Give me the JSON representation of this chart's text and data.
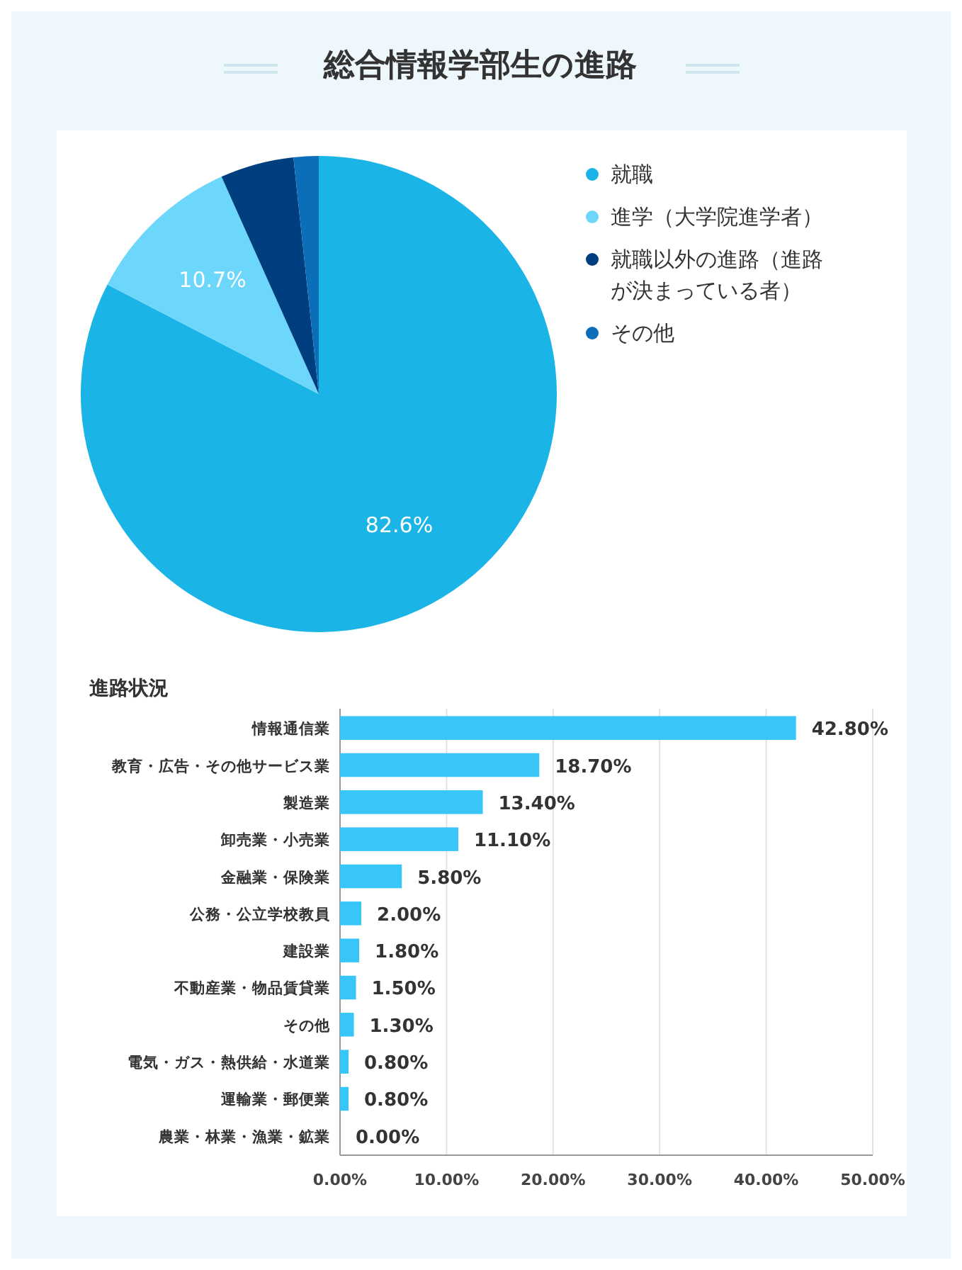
{
  "chart_data": [
    {
      "type": "pie",
      "title": "総合情報学部生の進路",
      "categories": [
        "就職",
        "進学（大学院進学者）",
        "就職以外の進路（進路が決まっている者）",
        "その他"
      ],
      "values": [
        82.6,
        10.7,
        5.0,
        1.7
      ],
      "colors": [
        "#1ab4e6",
        "#6dd6fb",
        "#003f7f",
        "#0a6fb8"
      ],
      "value_labels": [
        "82.6%",
        "10.7%",
        null,
        null
      ],
      "legend": "right"
    },
    {
      "type": "bar",
      "orientation": "horizontal",
      "subtitle": "進路状況",
      "categories": [
        "情報通信業",
        "教育・広告・その他サービス業",
        "製造業",
        "卸売業・小売業",
        "金融業・保険業",
        "公務・公立学校教員",
        "建設業",
        "不動産業・物品賃貸業",
        "その他",
        "電気・ガス・熱供給・水道業",
        "運輸業・郵便業",
        "農業・林業・漁業・鉱業"
      ],
      "values": [
        42.8,
        18.7,
        13.4,
        11.1,
        5.8,
        2.0,
        1.8,
        1.5,
        1.3,
        0.8,
        0.8,
        0.0
      ],
      "value_labels": [
        "42.80%",
        "18.70%",
        "13.40%",
        "11.10%",
        "5.80%",
        "2.00%",
        "1.80%",
        "1.50%",
        "1.30%",
        "0.80%",
        "0.80%",
        "0.00%"
      ],
      "color": "#38c6f9",
      "xlim": [
        0,
        50
      ],
      "xticks": [
        {
          "value": 0,
          "label": "0.00%"
        },
        {
          "value": 10,
          "label": "10.00%"
        },
        {
          "value": 20,
          "label": "20.00%"
        },
        {
          "value": 30,
          "label": "30.00%"
        },
        {
          "value": 40,
          "label": "40.00%"
        },
        {
          "value": 50,
          "label": "50.00%"
        }
      ],
      "grid": "x"
    }
  ]
}
